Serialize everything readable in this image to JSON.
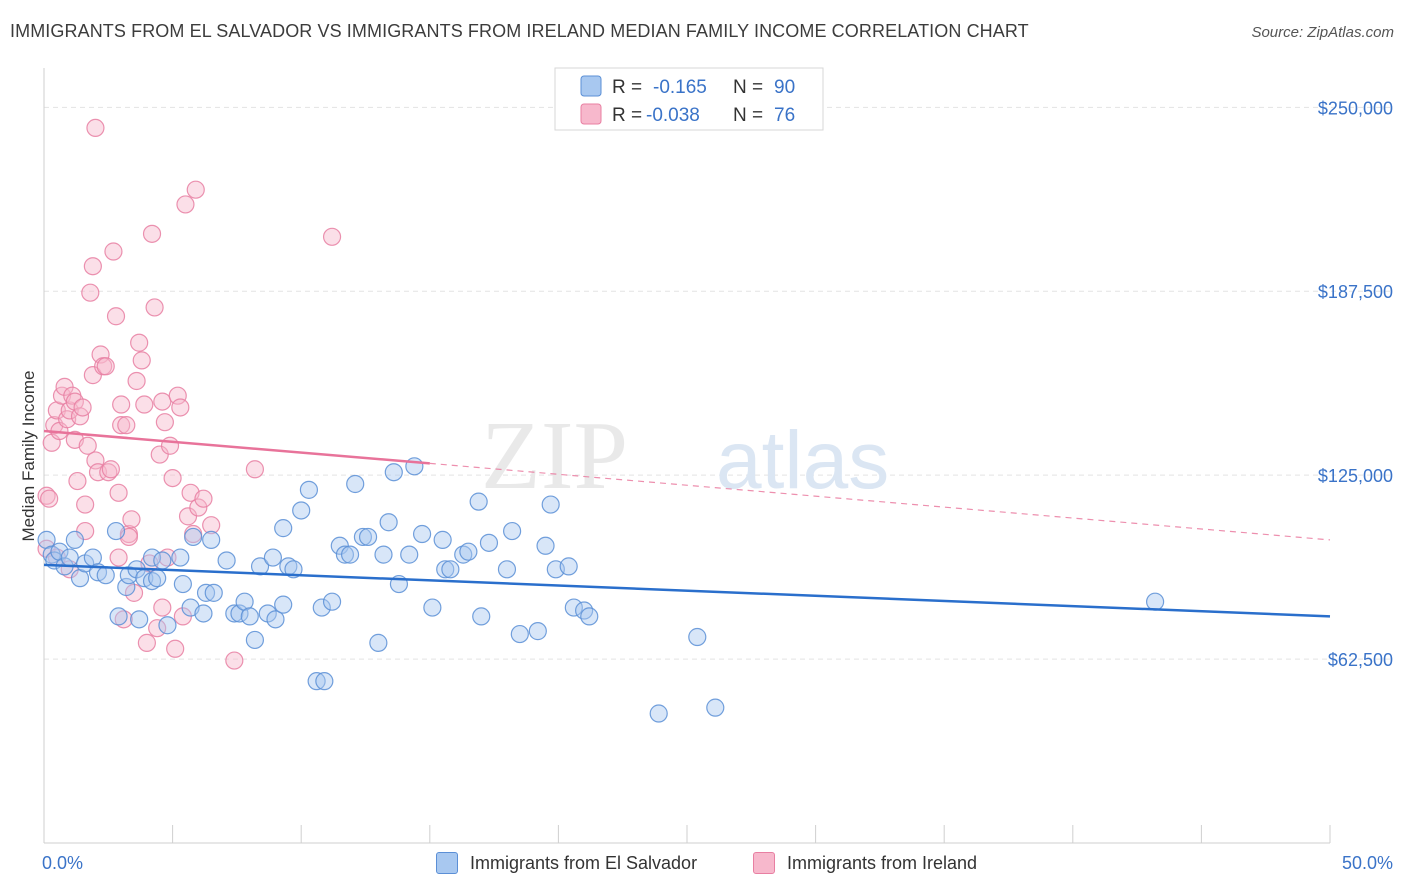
{
  "title": "IMMIGRANTS FROM EL SALVADOR VS IMMIGRANTS FROM IRELAND MEDIAN FAMILY INCOME CORRELATION CHART",
  "source": "Source: ZipAtlas.com",
  "watermark": {
    "zip": "ZIP",
    "atlas": "atlas"
  },
  "colors": {
    "el_salvador_fill": "#a8c8f0",
    "el_salvador_stroke": "#5b8fd6",
    "el_salvador_line": "#2a6fcc",
    "ireland_fill": "#f7b8cc",
    "ireland_stroke": "#e87fa2",
    "ireland_line": "#e8739a",
    "axis_label": "#3a73c8",
    "grid": "#e3e3e3"
  },
  "legend_top": {
    "rows": [
      {
        "r_label": "R =",
        "r_value": "-0.165",
        "n_label": "N =",
        "n_value": "90"
      },
      {
        "r_label": "R =",
        "r_value": "-0.038",
        "n_label": "N =",
        "n_value": "76"
      }
    ]
  },
  "legend_bottom": [
    {
      "label": "Immigrants from El Salvador"
    },
    {
      "label": "Immigrants from Ireland"
    }
  ],
  "chart_data": {
    "type": "scatter",
    "title": "IMMIGRANTS FROM EL SALVADOR VS IMMIGRANTS FROM IRELAND MEDIAN FAMILY INCOME CORRELATION CHART",
    "xlabel": "",
    "ylabel": "Median Family Income",
    "xlim": [
      0,
      50
    ],
    "ylim": [
      0,
      262000
    ],
    "x_tick_labels": [
      "0.0%",
      "50.0%"
    ],
    "y_ticks": [
      62500,
      125000,
      187500,
      250000
    ],
    "y_tick_labels": [
      "$62,500",
      "$125,000",
      "$187,500",
      "$250,000"
    ],
    "grid": true,
    "legend_placement": "top-center",
    "series": [
      {
        "name": "Immigrants from El Salvador",
        "r": -0.165,
        "n": 90,
        "trend": {
          "x": [
            0,
            50
          ],
          "y": [
            94500,
            77000
          ]
        },
        "points": [
          [
            0.1,
            103000
          ],
          [
            0.3,
            98000
          ],
          [
            0.4,
            96000
          ],
          [
            0.6,
            99000
          ],
          [
            0.8,
            94000
          ],
          [
            1.0,
            97000
          ],
          [
            1.2,
            103000
          ],
          [
            1.4,
            90000
          ],
          [
            1.6,
            95000
          ],
          [
            1.9,
            97000
          ],
          [
            2.1,
            92000
          ],
          [
            2.4,
            91000
          ],
          [
            2.8,
            106000
          ],
          [
            2.9,
            77000
          ],
          [
            3.2,
            87000
          ],
          [
            3.3,
            91000
          ],
          [
            3.6,
            93000
          ],
          [
            3.7,
            76000
          ],
          [
            3.9,
            90000
          ],
          [
            4.2,
            89000
          ],
          [
            4.4,
            90000
          ],
          [
            4.2,
            97000
          ],
          [
            4.6,
            96000
          ],
          [
            4.8,
            74000
          ],
          [
            5.3,
            97000
          ],
          [
            5.4,
            88000
          ],
          [
            5.7,
            80000
          ],
          [
            5.8,
            104000
          ],
          [
            6.2,
            78000
          ],
          [
            6.3,
            85000
          ],
          [
            6.5,
            103000
          ],
          [
            6.6,
            85000
          ],
          [
            7.1,
            96000
          ],
          [
            7.4,
            78000
          ],
          [
            7.6,
            78000
          ],
          [
            7.8,
            82000
          ],
          [
            8.0,
            77000
          ],
          [
            8.2,
            69000
          ],
          [
            8.4,
            94000
          ],
          [
            8.7,
            78000
          ],
          [
            8.9,
            97000
          ],
          [
            9.0,
            76000
          ],
          [
            9.3,
            81000
          ],
          [
            9.5,
            94000
          ],
          [
            9.7,
            93000
          ],
          [
            9.3,
            107000
          ],
          [
            10.0,
            113000
          ],
          [
            10.3,
            120000
          ],
          [
            10.6,
            55000
          ],
          [
            10.9,
            55000
          ],
          [
            10.8,
            80000
          ],
          [
            11.2,
            82000
          ],
          [
            11.5,
            101000
          ],
          [
            11.7,
            98000
          ],
          [
            11.9,
            98000
          ],
          [
            12.1,
            122000
          ],
          [
            12.4,
            104000
          ],
          [
            12.6,
            104000
          ],
          [
            13.0,
            68000
          ],
          [
            13.2,
            98000
          ],
          [
            13.4,
            109000
          ],
          [
            13.6,
            126000
          ],
          [
            13.8,
            88000
          ],
          [
            14.2,
            98000
          ],
          [
            14.4,
            128000
          ],
          [
            14.7,
            105000
          ],
          [
            15.1,
            80000
          ],
          [
            15.5,
            103000
          ],
          [
            15.6,
            93000
          ],
          [
            15.8,
            93000
          ],
          [
            16.3,
            98000
          ],
          [
            16.5,
            99000
          ],
          [
            16.9,
            116000
          ],
          [
            17.0,
            77000
          ],
          [
            17.3,
            102000
          ],
          [
            18.0,
            93000
          ],
          [
            18.2,
            106000
          ],
          [
            18.5,
            71000
          ],
          [
            19.2,
            72000
          ],
          [
            19.5,
            101000
          ],
          [
            19.7,
            115000
          ],
          [
            19.9,
            93000
          ],
          [
            20.4,
            94000
          ],
          [
            20.6,
            80000
          ],
          [
            21.0,
            79000
          ],
          [
            21.2,
            77000
          ],
          [
            23.9,
            44000
          ],
          [
            25.4,
            70000
          ],
          [
            26.1,
            46000
          ],
          [
            43.2,
            82000
          ]
        ]
      },
      {
        "name": "Immigrants from Ireland",
        "r": -0.038,
        "n": 76,
        "trend": {
          "x": [
            0,
            15
          ],
          "y": [
            140000,
            129000
          ],
          "extended": {
            "x": [
              15,
              50
            ],
            "y": [
              129000,
              103000
            ]
          }
        },
        "points": [
          [
            0.1,
            100000
          ],
          [
            0.1,
            118000
          ],
          [
            0.2,
            117000
          ],
          [
            0.3,
            136000
          ],
          [
            0.4,
            142000
          ],
          [
            0.5,
            147000
          ],
          [
            0.6,
            140000
          ],
          [
            0.7,
            152000
          ],
          [
            0.8,
            155000
          ],
          [
            0.9,
            144000
          ],
          [
            1.0,
            147000
          ],
          [
            1.1,
            152000
          ],
          [
            1.2,
            150000
          ],
          [
            1.2,
            137000
          ],
          [
            1.3,
            123000
          ],
          [
            1.4,
            145000
          ],
          [
            1.5,
            148000
          ],
          [
            1.6,
            115000
          ],
          [
            1.7,
            135000
          ],
          [
            1.8,
            187000
          ],
          [
            1.9,
            159000
          ],
          [
            1.9,
            196000
          ],
          [
            2.0,
            130000
          ],
          [
            2.1,
            126000
          ],
          [
            2.2,
            166000
          ],
          [
            2.3,
            162000
          ],
          [
            2.4,
            162000
          ],
          [
            2.5,
            126000
          ],
          [
            2.6,
            127000
          ],
          [
            2.7,
            201000
          ],
          [
            2.8,
            179000
          ],
          [
            2.9,
            119000
          ],
          [
            3.0,
            149000
          ],
          [
            3.0,
            142000
          ],
          [
            3.1,
            76000
          ],
          [
            3.2,
            142000
          ],
          [
            3.3,
            105000
          ],
          [
            3.4,
            110000
          ],
          [
            3.5,
            85000
          ],
          [
            3.6,
            157000
          ],
          [
            3.7,
            170000
          ],
          [
            3.8,
            164000
          ],
          [
            3.9,
            149000
          ],
          [
            4.0,
            68000
          ],
          [
            4.1,
            95000
          ],
          [
            4.2,
            207000
          ],
          [
            4.3,
            182000
          ],
          [
            4.4,
            73000
          ],
          [
            4.5,
            132000
          ],
          [
            4.6,
            150000
          ],
          [
            4.7,
            143000
          ],
          [
            4.8,
            97000
          ],
          [
            4.9,
            135000
          ],
          [
            5.0,
            124000
          ],
          [
            5.1,
            66000
          ],
          [
            5.2,
            152000
          ],
          [
            5.3,
            148000
          ],
          [
            5.4,
            77000
          ],
          [
            5.5,
            217000
          ],
          [
            5.6,
            111000
          ],
          [
            5.7,
            119000
          ],
          [
            5.8,
            105000
          ],
          [
            5.9,
            222000
          ],
          [
            6.0,
            114000
          ],
          [
            6.2,
            117000
          ],
          [
            7.4,
            62000
          ],
          [
            8.2,
            127000
          ],
          [
            11.2,
            206000
          ],
          [
            2.0,
            243000
          ],
          [
            1.6,
            106000
          ],
          [
            2.9,
            97000
          ],
          [
            0.5,
            97000
          ],
          [
            1.0,
            93000
          ],
          [
            3.3,
            104000
          ],
          [
            4.6,
            80000
          ],
          [
            6.5,
            108000
          ]
        ]
      }
    ]
  }
}
